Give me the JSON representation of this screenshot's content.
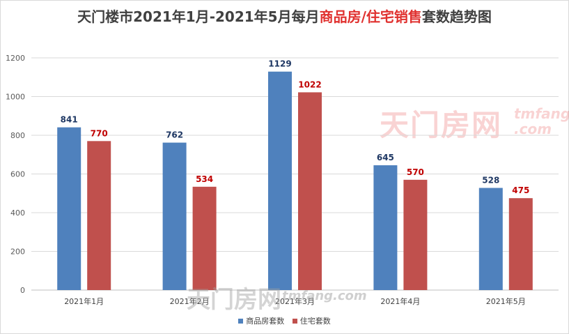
{
  "title": {
    "part1": "天门楼市2021年1月-2021年5月每月",
    "highlight": "商品房/住宅销售",
    "part2": "套数趋势图"
  },
  "watermark": {
    "top_cn": "天门房网",
    "top_en_1": "tmfang",
    "top_en_2": ".com",
    "bottom_cn": "天门房网",
    "bottom_en": "tmfang.com"
  },
  "chart_data": {
    "type": "bar",
    "categories": [
      "2021年1月",
      "2021年2月",
      "2021年3月",
      "2021年4月",
      "2021年5月"
    ],
    "series": [
      {
        "name": "商品房套数",
        "color": "#4f81bd",
        "label_color": "#1f3864",
        "values": [
          841,
          762,
          1129,
          645,
          528
        ]
      },
      {
        "name": "住宅套数",
        "color": "#c0504d",
        "label_color": "#c00000",
        "values": [
          770,
          534,
          1022,
          570,
          475
        ]
      }
    ],
    "ylim": [
      0,
      1200
    ],
    "yticks": [
      0,
      200,
      400,
      600,
      800,
      1000,
      1200
    ],
    "grid": true,
    "legend_position": "bottom"
  }
}
